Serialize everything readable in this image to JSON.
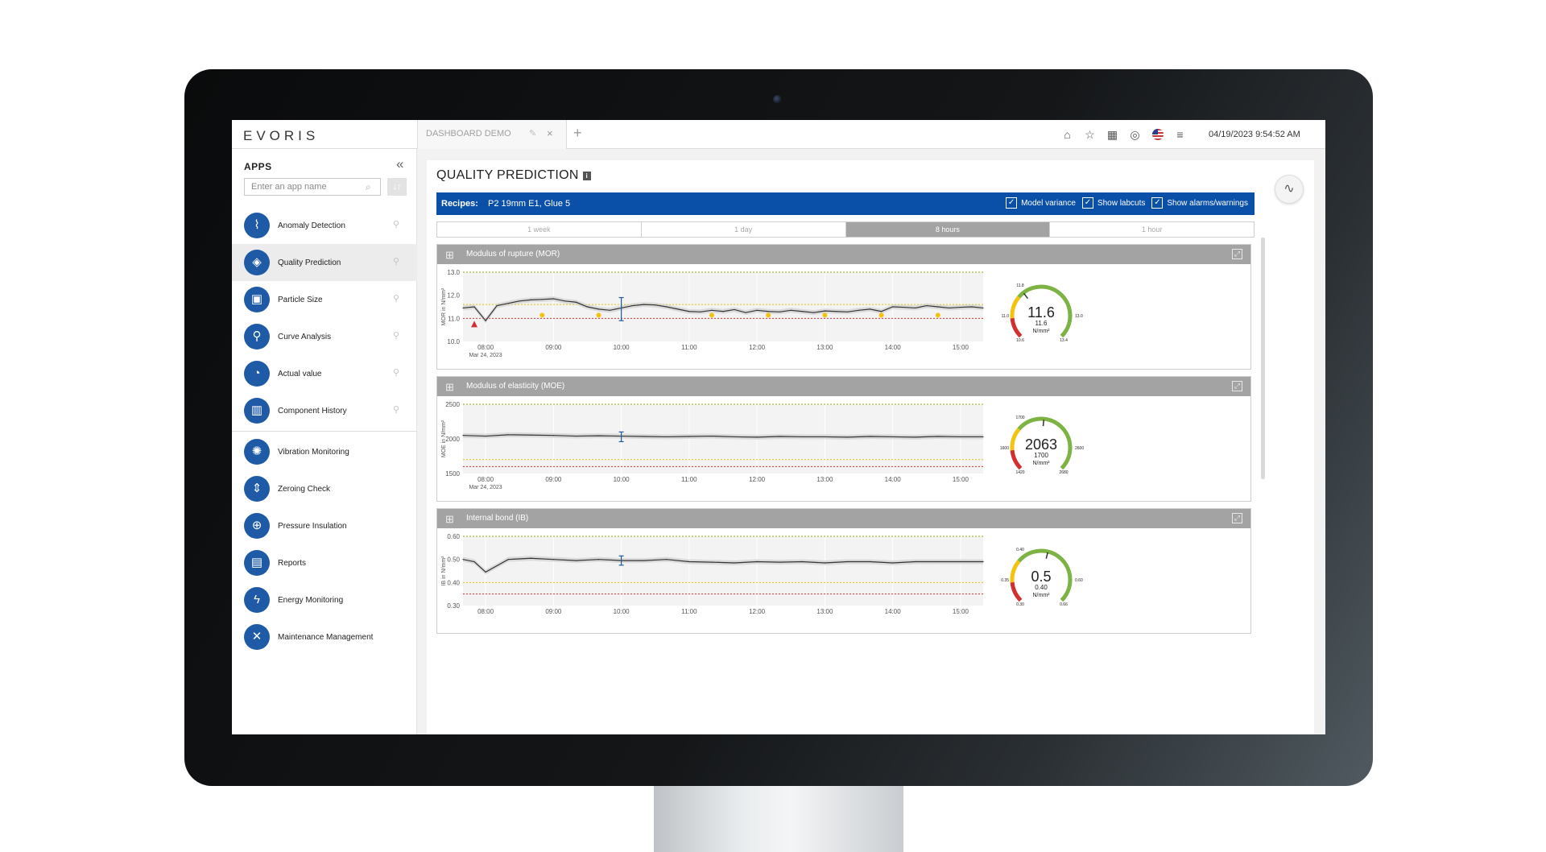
{
  "header": {
    "logo": "EVORIS",
    "tab_label": "DASHBOARD DEMO",
    "datetime": "04/19/2023 9:54:52 AM"
  },
  "sidebar": {
    "title": "APPS",
    "search_placeholder": "Enter an app name",
    "pinned_apps": [
      {
        "label": "Anomaly Detection",
        "icon": "anomaly-icon"
      },
      {
        "label": "Quality Prediction",
        "icon": "quality-icon",
        "active": true
      },
      {
        "label": "Particle Size",
        "icon": "particle-icon"
      },
      {
        "label": "Curve Analysis",
        "icon": "curve-icon"
      },
      {
        "label": "Actual value",
        "icon": "gauge-icon"
      },
      {
        "label": "Component History",
        "icon": "history-icon"
      }
    ],
    "other_apps": [
      {
        "label": "Vibration Monitoring",
        "icon": "vibration-icon"
      },
      {
        "label": "Zeroing Check",
        "icon": "zeroing-icon"
      },
      {
        "label": "Pressure Insulation",
        "icon": "pressure-icon"
      },
      {
        "label": "Reports",
        "icon": "reports-icon"
      },
      {
        "label": "Energy Monitoring",
        "icon": "energy-icon"
      },
      {
        "label": "Maintenance Management",
        "icon": "maintenance-icon"
      }
    ]
  },
  "main": {
    "title": "QUALITY PREDICTION",
    "recipe_label": "Recipes:",
    "recipe_value": "P2 19mm E1, Glue 5",
    "options": [
      {
        "label": "Model variance",
        "checked": true
      },
      {
        "label": "Show labcuts",
        "checked": true
      },
      {
        "label": "Show alarms/warnings",
        "checked": true
      }
    ],
    "ranges": [
      "1 week",
      "1 day",
      "8 hours",
      "1 hour"
    ],
    "selected_range": "8 hours"
  },
  "colors": {
    "brand_blue": "#0a4fa8",
    "line": "#333333",
    "warn_line": "#e0c400",
    "alarm_line": "#e53030",
    "upper_line": "#9aaa10",
    "gauge_green": "#7cb342",
    "gauge_yellow": "#f2c40f",
    "gauge_red": "#d32f2f"
  },
  "chart_data": [
    {
      "type": "line",
      "title": "Modulus of rupture (MOR)",
      "ylabel": "MOR in N/mm²",
      "ylim": [
        10.0,
        13.0
      ],
      "yticks": [
        "13.0",
        "12.0",
        "11.0",
        "10.0"
      ],
      "xticks": [
        "08:00",
        "09:00",
        "10:00",
        "11:00",
        "12:00",
        "13:00",
        "14:00",
        "15:00"
      ],
      "date_label": "Mar 24, 2023",
      "upper_limit": 13.0,
      "warning_limit": 11.6,
      "alarm_limit": 11.0,
      "x": [
        "07:40",
        "07:50",
        "08:00",
        "08:10",
        "08:20",
        "08:30",
        "08:40",
        "08:50",
        "09:00",
        "09:10",
        "09:20",
        "09:30",
        "09:40",
        "09:50",
        "10:00",
        "10:10",
        "10:20",
        "10:30",
        "10:40",
        "10:50",
        "11:00",
        "11:10",
        "11:20",
        "11:30",
        "11:40",
        "11:50",
        "12:00",
        "12:10",
        "12:20",
        "12:30",
        "12:40",
        "12:50",
        "13:00",
        "13:10",
        "13:20",
        "13:30",
        "13:40",
        "13:50",
        "14:00",
        "14:10",
        "14:20",
        "14:30",
        "14:40",
        "14:50",
        "15:00",
        "15:10",
        "15:20"
      ],
      "values": [
        11.45,
        11.5,
        10.9,
        11.55,
        11.65,
        11.75,
        11.8,
        11.82,
        11.85,
        11.75,
        11.7,
        11.5,
        11.4,
        11.35,
        11.45,
        11.55,
        11.6,
        11.58,
        11.5,
        11.4,
        11.3,
        11.28,
        11.35,
        11.3,
        11.38,
        11.25,
        11.35,
        11.3,
        11.28,
        11.35,
        11.3,
        11.25,
        11.32,
        11.3,
        11.28,
        11.35,
        11.4,
        11.3,
        11.5,
        11.48,
        11.45,
        11.55,
        11.5,
        11.45,
        11.48,
        11.5,
        11.45
      ],
      "labcuts": [
        {
          "x": "10:00",
          "value": 11.4,
          "low": 10.9,
          "high": 11.9
        }
      ],
      "warnings": [
        "08:50",
        "09:40",
        "11:20",
        "12:10",
        "13:00",
        "13:50",
        "14:40"
      ],
      "alarms": [
        "07:50"
      ],
      "gauge": {
        "value": "11.6",
        "setpoint": "11.6",
        "unit": "N/mm²",
        "min": "10.6",
        "max": "13.4",
        "low": "11.0",
        "high": "13.0",
        "top": "11.8",
        "frac": 0.36
      }
    },
    {
      "type": "line",
      "title": "Modulus of elasticity (MOE)",
      "ylabel": "MOE in N/mm²",
      "ylim": [
        1500,
        2500
      ],
      "yticks": [
        "2500",
        "2000",
        "1500"
      ],
      "xticks": [
        "08:00",
        "09:00",
        "10:00",
        "11:00",
        "12:00",
        "13:00",
        "14:00",
        "15:00"
      ],
      "date_label": "Mar 24, 2023",
      "upper_limit": 2500,
      "warning_limit": 1700,
      "alarm_limit": 1600,
      "x": [
        "07:40",
        "08:00",
        "08:20",
        "08:40",
        "09:00",
        "09:20",
        "09:40",
        "10:00",
        "10:20",
        "10:40",
        "11:00",
        "11:20",
        "11:40",
        "12:00",
        "12:20",
        "12:40",
        "13:00",
        "13:20",
        "13:40",
        "14:00",
        "14:20",
        "14:40",
        "15:00",
        "15:20"
      ],
      "values": [
        2050,
        2040,
        2060,
        2055,
        2050,
        2040,
        2045,
        2040,
        2035,
        2030,
        2035,
        2040,
        2030,
        2025,
        2035,
        2030,
        2030,
        2025,
        2035,
        2030,
        2025,
        2035,
        2030,
        2030
      ],
      "labcuts": [
        {
          "x": "10:00",
          "value": 2030,
          "low": 1960,
          "high": 2100
        }
      ],
      "gauge": {
        "value": "2063",
        "setpoint": "1700",
        "unit": "N/mm²",
        "min": "1420",
        "max": "2680",
        "low": "1600",
        "high": "2600",
        "top": "1700",
        "frac": 0.52
      }
    },
    {
      "type": "line",
      "title": "Internal bond (IB)",
      "ylabel": "IB in N/mm²",
      "ylim": [
        0.3,
        0.6
      ],
      "yticks": [
        "0.60",
        "0.50",
        "0.40",
        "0.30"
      ],
      "xticks": [
        "08:00",
        "09:00",
        "10:00",
        "11:00",
        "12:00",
        "13:00",
        "14:00",
        "15:00"
      ],
      "upper_limit": 0.6,
      "warning_limit": 0.4,
      "alarm_limit": 0.35,
      "x": [
        "07:40",
        "07:50",
        "08:00",
        "08:20",
        "08:40",
        "09:00",
        "09:20",
        "09:40",
        "10:00",
        "10:20",
        "10:40",
        "11:00",
        "11:20",
        "11:40",
        "12:00",
        "12:20",
        "12:40",
        "13:00",
        "13:20",
        "13:40",
        "14:00",
        "14:20",
        "14:40",
        "15:00",
        "15:20"
      ],
      "values": [
        0.5,
        0.49,
        0.445,
        0.5,
        0.505,
        0.5,
        0.495,
        0.5,
        0.495,
        0.495,
        0.5,
        0.49,
        0.488,
        0.485,
        0.49,
        0.488,
        0.49,
        0.485,
        0.49,
        0.49,
        0.485,
        0.49,
        0.49,
        0.49,
        0.49
      ],
      "labcuts": [
        {
          "x": "10:00",
          "value": 0.495,
          "low": 0.475,
          "high": 0.515
        }
      ],
      "gauge": {
        "value": "0.5",
        "setpoint": "0.40",
        "unit": "N/mm²",
        "min": "0.30",
        "max": "0.66",
        "low": "0.35",
        "high": "0.60",
        "top": "0.40",
        "frac": 0.55
      }
    }
  ]
}
